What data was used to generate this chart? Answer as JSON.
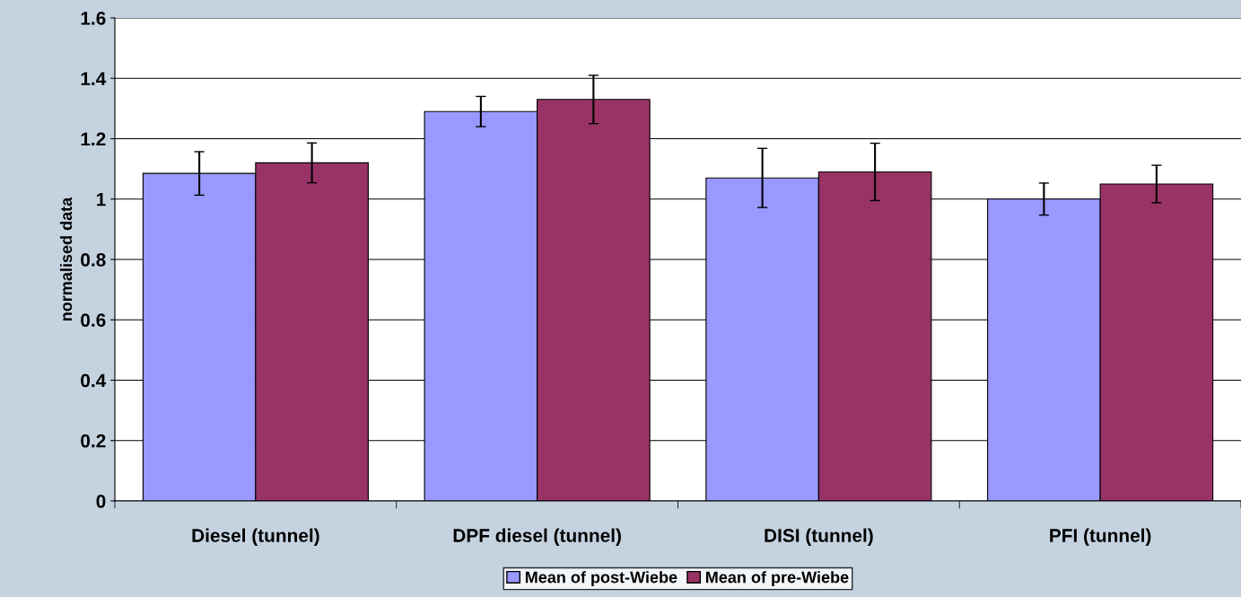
{
  "chart_data": {
    "type": "bar",
    "ylabel": "normalised data",
    "categories": [
      "Diesel (tunnel)",
      "DPF diesel (tunnel)",
      "DISI (tunnel)",
      "PFI (tunnel)"
    ],
    "series": [
      {
        "name": "Mean of post-Wiebe",
        "color": "#9999ff",
        "values": [
          1.085,
          1.29,
          1.07,
          1.0
        ],
        "errors": [
          0.072,
          0.05,
          0.098,
          0.053
        ]
      },
      {
        "name": "Mean of pre-Wiebe",
        "color": "#993366",
        "values": [
          1.12,
          1.33,
          1.09,
          1.05
        ],
        "errors": [
          0.066,
          0.08,
          0.095,
          0.062
        ]
      }
    ],
    "ylim": [
      0,
      1.6
    ],
    "yticks": [
      0,
      0.2,
      0.4,
      0.6,
      0.8,
      1,
      1.2,
      1.4,
      1.6
    ],
    "grid": "y",
    "legend": "bottom"
  }
}
